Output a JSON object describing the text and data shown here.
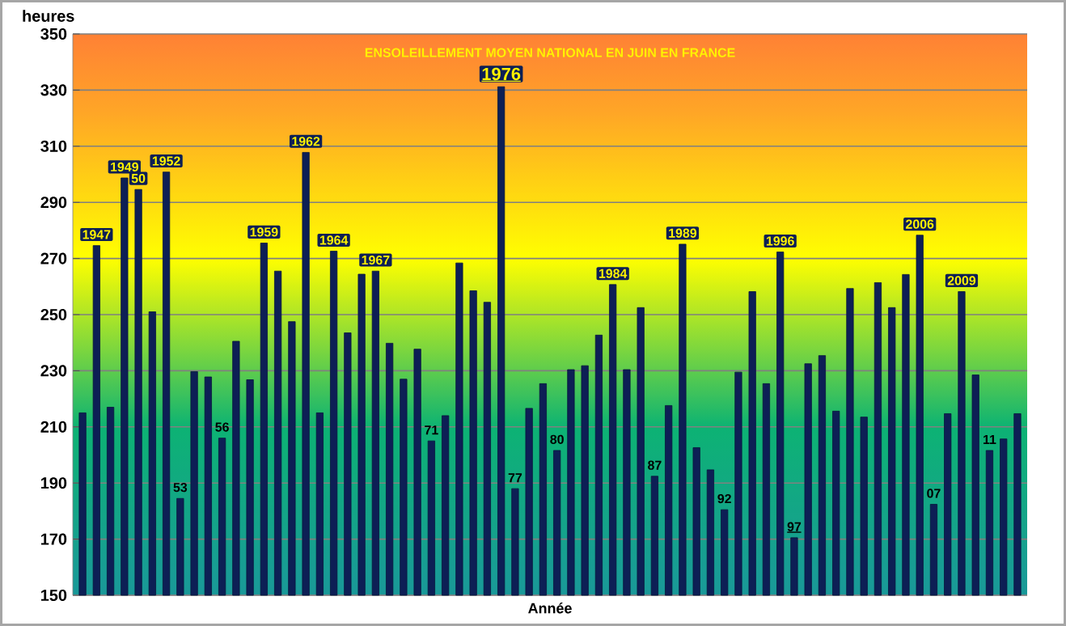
{
  "chart_data": {
    "type": "bar",
    "title": "ENSOLEILLEMENT MOYEN NATIONAL EN JUIN EN FRANCE",
    "xlabel": "Année",
    "ylabel": "heures",
    "categories": [
      null,
      "1947",
      null,
      "1949",
      "50",
      null,
      "1952",
      "53",
      null,
      null,
      "56",
      null,
      null,
      "1959",
      null,
      null,
      "1962",
      null,
      "1964",
      null,
      null,
      "1967",
      null,
      null,
      null,
      "71",
      null,
      null,
      null,
      null,
      "1976",
      "77",
      null,
      null,
      "80",
      null,
      null,
      null,
      "1984",
      null,
      null,
      "87",
      null,
      "1989",
      null,
      null,
      "92",
      null,
      null,
      null,
      "1996",
      "97",
      null,
      null,
      null,
      null,
      null,
      null,
      null,
      null,
      "2006",
      "07",
      null,
      "2009",
      null,
      "11",
      null,
      null
    ],
    "values": [
      215,
      274.6,
      217,
      298.7,
      294.6,
      251,
      300.8,
      184.5,
      229.7,
      227.8,
      206,
      240.5,
      226.8,
      275.5,
      265.5,
      247.5,
      307.8,
      215,
      272.6,
      243.5,
      264.4,
      265.5,
      239.8,
      227,
      237.7,
      205,
      214,
      268.4,
      258.5,
      254.4,
      331.2,
      188,
      216.6,
      225.4,
      201.6,
      230.4,
      231.8,
      242.7,
      260.7,
      230.4,
      252.5,
      192.4,
      217.6,
      275.1,
      202.6,
      194.7,
      180.5,
      229.5,
      258.2,
      225.4,
      272.3,
      170.5,
      232.5,
      235.4,
      215.6,
      259.3,
      213.5,
      261.4,
      252.5,
      264.3,
      278.3,
      182.4,
      214.7,
      258.2,
      228.5,
      201.6,
      205.7,
      214.7
    ],
    "color": "#0d1f55",
    "ylim": [
      150,
      350
    ],
    "yticks": [
      150,
      170,
      190,
      210,
      230,
      250,
      270,
      290,
      310,
      330,
      350
    ],
    "grid": "y",
    "tick_labels": "y"
  }
}
